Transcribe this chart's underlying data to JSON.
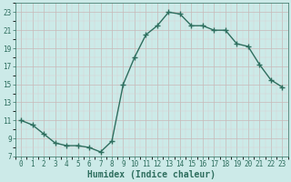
{
  "x": [
    0,
    1,
    2,
    3,
    4,
    5,
    6,
    7,
    8,
    9,
    10,
    11,
    12,
    13,
    14,
    15,
    16,
    17,
    18,
    19,
    20,
    21,
    22,
    23
  ],
  "y": [
    11,
    10.5,
    9.5,
    8.5,
    8.2,
    8.2,
    8.0,
    7.5,
    8.7,
    15.0,
    18.0,
    20.5,
    21.5,
    23.0,
    22.8,
    21.5,
    21.5,
    21.0,
    21.0,
    19.5,
    19.2,
    17.2,
    15.5,
    14.7
  ],
  "line_color": "#2e6e5e",
  "marker": "+",
  "marker_size": 4.0,
  "bg_color": "#cceae8",
  "grid_major_color": "#c8b8b8",
  "grid_minor_color": "#ddd0d0",
  "xlabel": "Humidex (Indice chaleur)",
  "xlim": [
    -0.5,
    23.5
  ],
  "ylim": [
    7,
    24
  ],
  "yticks": [
    7,
    9,
    11,
    13,
    15,
    17,
    19,
    21,
    23
  ],
  "xticks": [
    0,
    1,
    2,
    3,
    4,
    5,
    6,
    7,
    8,
    9,
    10,
    11,
    12,
    13,
    14,
    15,
    16,
    17,
    18,
    19,
    20,
    21,
    22,
    23
  ],
  "tick_fontsize": 5.5,
  "xlabel_fontsize": 7.0,
  "linewidth": 1.0,
  "marker_color": "#2e6e5e"
}
